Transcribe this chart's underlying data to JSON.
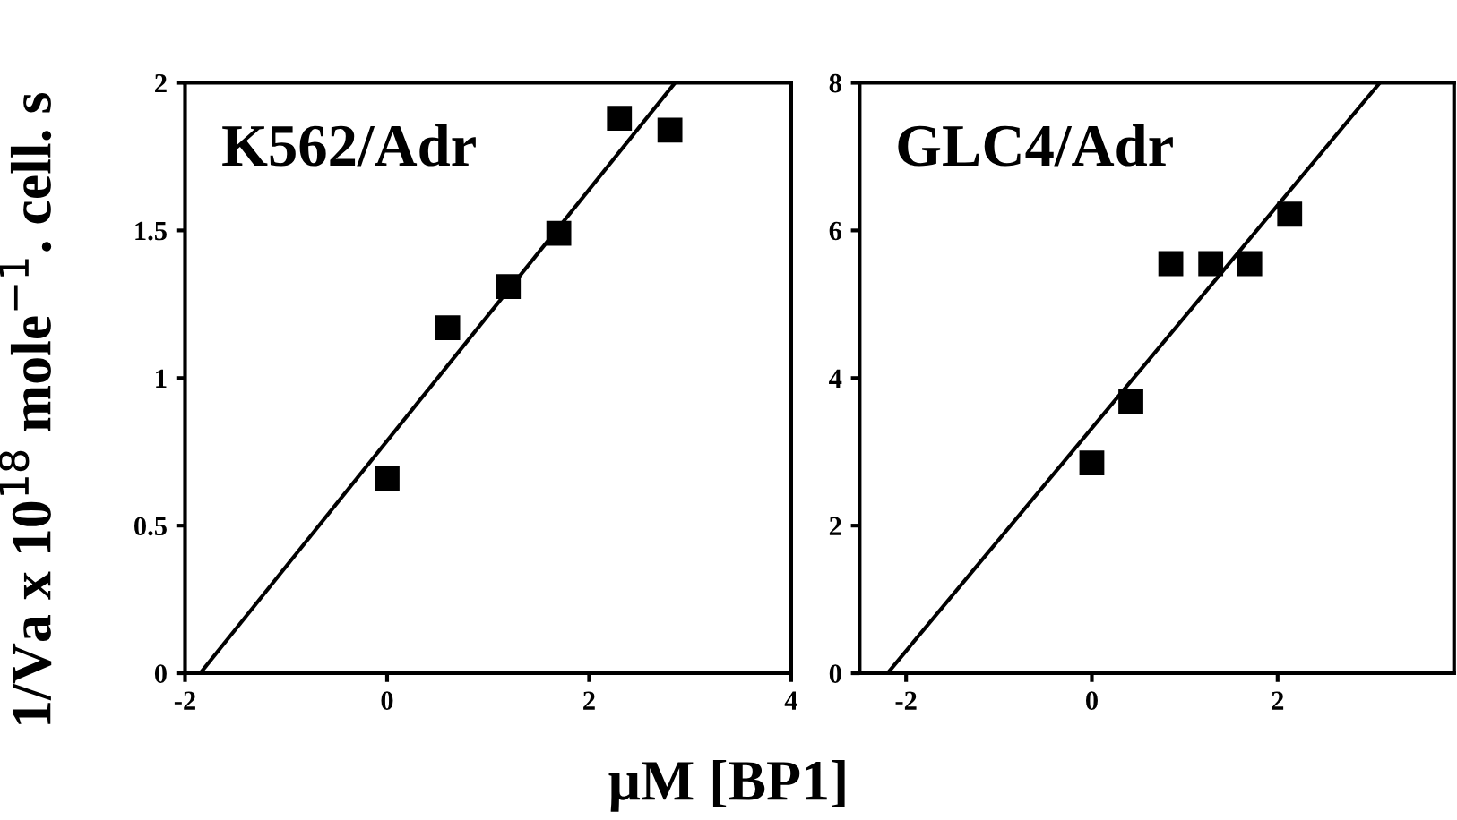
{
  "chart_data": [
    {
      "type": "scatter",
      "title": "K562/Adr",
      "ylabel": "1/Va x 10$^{18}$ mole$^{−1}$. cell. s",
      "xlabel": "μM [BP1]",
      "marker": "square",
      "xlim": [
        -2,
        4
      ],
      "ylim": [
        0,
        2
      ],
      "xticks": [
        -2,
        0,
        2,
        4
      ],
      "yticks": [
        0,
        0.5,
        1,
        1.5,
        2
      ],
      "grid": false,
      "legend": false,
      "series": [
        {
          "color": "#000000",
          "x": [
            0,
            0.6,
            1.2,
            1.7,
            2.3,
            2.8
          ],
          "values": [
            0.66,
            1.17,
            1.31,
            1.49,
            1.88,
            1.84
          ]
        },
        {
          "type": "line",
          "marker": "none",
          "color": "#000000",
          "x": [
            -1.85,
            2.85
          ],
          "values": [
            0,
            2
          ]
        }
      ]
    },
    {
      "type": "scatter",
      "title": "GLC4/Adr",
      "marker": "square",
      "xlim": [
        -2.5,
        3.9
      ],
      "ylim": [
        0,
        8
      ],
      "xticks": [
        -2,
        0,
        2
      ],
      "yticks": [
        0,
        2,
        4,
        6,
        8
      ],
      "grid": false,
      "legend": false,
      "series": [
        {
          "color": "#000000",
          "x": [
            0,
            0.42,
            0.85,
            1.28,
            1.7,
            2.13
          ],
          "values": [
            2.85,
            3.68,
            5.55,
            5.55,
            5.55,
            6.22
          ]
        },
        {
          "type": "line",
          "marker": "none",
          "color": "#000000",
          "x": [
            -2.2,
            3.1
          ],
          "values": [
            0,
            8
          ]
        }
      ]
    }
  ]
}
